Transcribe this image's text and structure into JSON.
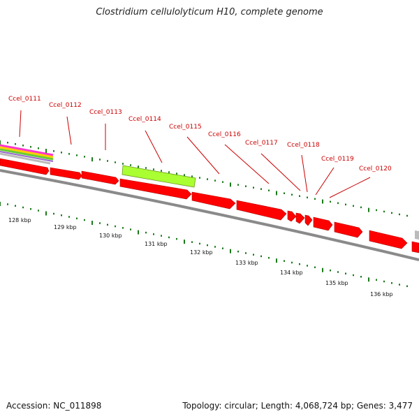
{
  "title": "Clostridium cellulolyticum H10, complete genome",
  "accession": "Accession: NC_011898",
  "summary": "Topology: circular; Length: 4,068,724 bp; Genes: 3,477",
  "colors": {
    "gene_forward": "#ff0000",
    "gene_highlight": "#aaff33",
    "backbone": "#888888",
    "tick": "#1a7a1a",
    "label": "#cc0000"
  },
  "scale": {
    "labels": [
      "128 kbp",
      "129 kbp",
      "130 kbp",
      "131 kbp",
      "132 kbp",
      "133 kbp",
      "134 kbp",
      "135 kbp",
      "136 kbp"
    ]
  },
  "genes": [
    {
      "name": "Ccel_0111"
    },
    {
      "name": "Ccel_0112"
    },
    {
      "name": "Ccel_0113"
    },
    {
      "name": "Ccel_0114"
    },
    {
      "name": "Ccel_0115"
    },
    {
      "name": "Ccel_0116"
    },
    {
      "name": "Ccel_0117"
    },
    {
      "name": "Ccel_0118"
    },
    {
      "name": "Ccel_0119"
    },
    {
      "name": "Ccel_0120"
    }
  ]
}
